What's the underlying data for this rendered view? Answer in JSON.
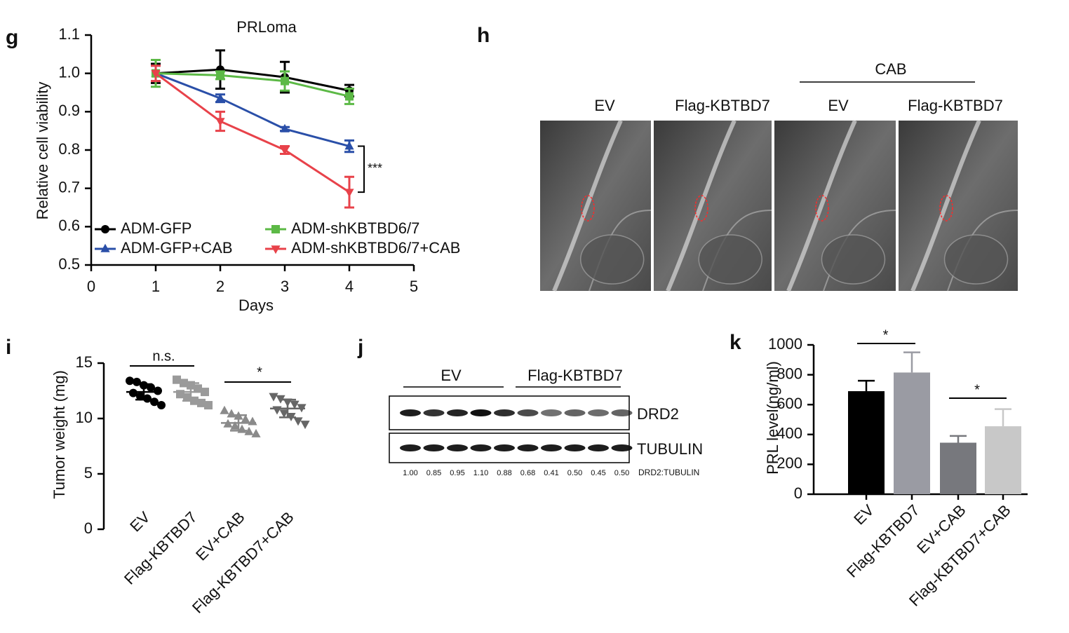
{
  "panel_labels": [
    "g",
    "h",
    "i",
    "j",
    "k"
  ],
  "chart_data": [
    {
      "type": "line",
      "title": "PRLoma",
      "x_label": "Days",
      "y_label": "Relative cell viability",
      "x": [
        1,
        2,
        3,
        4
      ],
      "xlim": [
        0,
        5
      ],
      "xticks": [
        0,
        1,
        2,
        3,
        4,
        5
      ],
      "ylim": [
        0.5,
        1.1
      ],
      "yticks": [
        0.5,
        0.6,
        0.7,
        0.8,
        0.9,
        {
          "value": 1,
          "label": "1.0"
        },
        1.1
      ],
      "legend": "lower-left",
      "series": [
        {
          "name": "ADM-GFP",
          "color": "#000000",
          "marker": "circle",
          "values": [
            1.0,
            1.01,
            0.99,
            0.955
          ],
          "errors": [
            0.025,
            0.05,
            0.04,
            0.015
          ]
        },
        {
          "name": "ADM-GFP+CAB",
          "color": "#2a4fa8",
          "marker": "triangle-up",
          "values": [
            1.0,
            0.935,
            0.855,
            0.81
          ],
          "errors": [
            0.02,
            0.01,
            0.005,
            0.015
          ]
        },
        {
          "name": "ADM-shKBTBD6/7",
          "color": "#5cb946",
          "marker": "square",
          "values": [
            1.0,
            0.995,
            0.98,
            0.94
          ],
          "errors": [
            0.035,
            0.01,
            0.025,
            0.02
          ]
        },
        {
          "name": "ADM-shKBTBD6/7+CAB",
          "color": "#e8424a",
          "marker": "triangle-down",
          "values": [
            1.0,
            0.875,
            0.8,
            0.69
          ],
          "errors": [
            0.02,
            0.025,
            0.01,
            0.04
          ]
        }
      ],
      "annotations": [
        "***"
      ]
    },
    {
      "type": "dot",
      "y_label": "Tumor weight (mg)",
      "categories": [
        "EV",
        "Flag-KBTBD7",
        "EV+CAB",
        "Flag-KBTBD7+CAB"
      ],
      "ylim": [
        0,
        15
      ],
      "yticks": [
        0,
        5,
        10,
        15
      ],
      "groups": [
        {
          "color": "#000000",
          "marker": "circle",
          "values": [
            13.4,
            13.3,
            13.0,
            12.8,
            12.5,
            12.3,
            12.0,
            11.8,
            11.5,
            11.2
          ],
          "mean": 12.4,
          "sd": 0.7
        },
        {
          "color": "#9a9a9a",
          "marker": "square",
          "values": [
            13.5,
            13.2,
            13.0,
            12.7,
            12.4,
            12.2,
            11.9,
            11.6,
            11.4,
            11.2
          ],
          "mean": 12.4,
          "sd": 0.8
        },
        {
          "color": "#8a8a8a",
          "marker": "triangle-up",
          "values": [
            10.7,
            10.4,
            10.2,
            9.9,
            9.7,
            9.5,
            9.3,
            9.0,
            8.8,
            8.6
          ],
          "mean": 9.6,
          "sd": 0.7
        },
        {
          "color": "#666666",
          "marker": "triangle-down",
          "values": [
            12.0,
            11.8,
            11.5,
            11.3,
            11.0,
            10.8,
            10.5,
            10.2,
            9.8,
            9.5
          ],
          "mean": 10.9,
          "sd": 0.8
        }
      ],
      "annotations": [
        "n.s.",
        "*"
      ]
    },
    {
      "type": "bar",
      "y_label": "PRL level(ng/ml)",
      "categories": [
        "EV",
        "Flag-KBTBD7",
        "EV+CAB",
        "Flag-KBTBD7+CAB"
      ],
      "values": [
        690,
        815,
        345,
        455
      ],
      "errors": [
        70,
        135,
        45,
        115
      ],
      "colors": [
        "#000000",
        "#9a9ba3",
        "#77787d",
        "#c8c8c8"
      ],
      "ylim": [
        0,
        1000
      ],
      "yticks": [
        0,
        200,
        400,
        600,
        800,
        1000
      ],
      "annotations": [
        "*",
        "*"
      ]
    }
  ],
  "mri": {
    "group_label": "CAB",
    "labels": [
      "EV",
      "Flag-KBTBD7",
      "EV",
      "Flag-KBTBD7"
    ]
  },
  "blot": {
    "groups": [
      "EV",
      "Flag-KBTBD7"
    ],
    "rows": [
      "DRD2",
      "TUBULIN"
    ],
    "ratios": [
      "1.00",
      "0.85",
      "0.95",
      "1.10",
      "0.88",
      "0.68",
      "0.41",
      "0.50",
      "0.45",
      "0.50"
    ],
    "ratio_label": "DRD2:TUBULIN"
  }
}
